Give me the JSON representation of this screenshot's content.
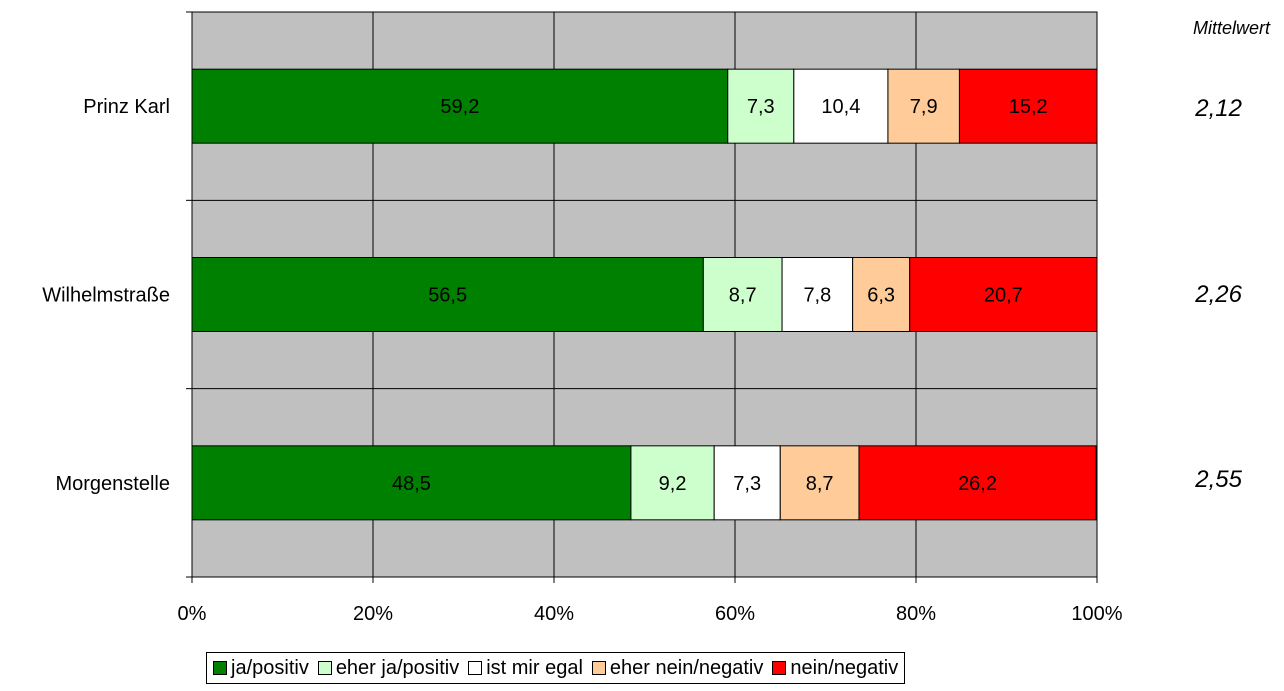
{
  "chart_data": {
    "type": "bar",
    "orientation": "horizontal",
    "stacked": true,
    "percent": true,
    "categories": [
      "Prinz Karl",
      "Wilhelmstraße",
      "Morgenstelle"
    ],
    "series": [
      {
        "name": "ja/positiv",
        "color": "#008000",
        "values": [
          59.2,
          56.5,
          48.5
        ],
        "labels": [
          "59,2",
          "56,5",
          "48,5"
        ]
      },
      {
        "name": "eher ja/positiv",
        "color": "#ccffcc",
        "values": [
          7.3,
          8.7,
          9.2
        ],
        "labels": [
          "7,3",
          "8,7",
          "9,2"
        ]
      },
      {
        "name": "ist mir egal",
        "color": "#ffffff",
        "values": [
          10.4,
          7.8,
          7.3
        ],
        "labels": [
          "10,4",
          "7,8",
          "7,3"
        ]
      },
      {
        "name": "eher nein/negativ",
        "color": "#ffcc99",
        "values": [
          7.9,
          6.3,
          8.7
        ],
        "labels": [
          "7,9",
          "6,3",
          "8,7"
        ]
      },
      {
        "name": "nein/negativ",
        "color": "#ff0000",
        "values": [
          15.2,
          20.7,
          26.2
        ],
        "labels": [
          "15,2",
          "20,7",
          "26,2"
        ]
      }
    ],
    "x_ticks": [
      "0%",
      "20%",
      "40%",
      "60%",
      "80%",
      "100%"
    ],
    "xlim": [
      0,
      100
    ],
    "grid": true,
    "plot_background": "#c0c0c0",
    "legend_position": "bottom"
  },
  "mean": {
    "header": "Mittelwert",
    "values": [
      "2,12",
      "2,26",
      "2,55"
    ]
  }
}
